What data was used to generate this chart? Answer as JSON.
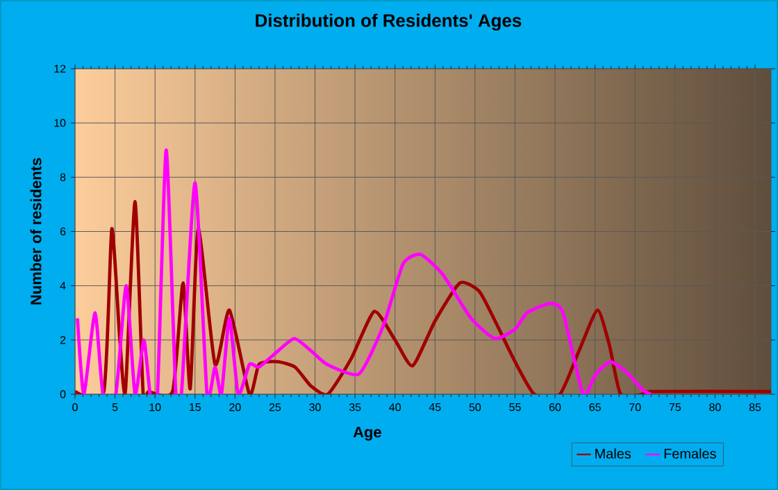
{
  "chart_data": {
    "type": "line",
    "title": "Distribution of Residents' Ages",
    "xlabel": "Age",
    "ylabel": "Number of residents",
    "xlim": [
      0,
      87
    ],
    "ylim": [
      0,
      12
    ],
    "xticks": [
      0,
      5,
      10,
      15,
      20,
      25,
      30,
      35,
      40,
      45,
      50,
      55,
      60,
      65,
      70,
      75,
      80,
      85
    ],
    "yticks": [
      0,
      2,
      4,
      6,
      8,
      10,
      12
    ],
    "grid": true,
    "legend": "bottom right",
    "series": [
      {
        "name": "Males",
        "color": "#a00000",
        "x": [
          0,
          3.6,
          4.6,
          5.6,
          6.3,
          7.5,
          8.5,
          9.2,
          12.2,
          13.5,
          14.4,
          15.4,
          17.5,
          19.3,
          21.8,
          23,
          25.3,
          27.5,
          29.5,
          31.6,
          34.5,
          37.4,
          40,
          42.2,
          45,
          48.1,
          50.5,
          52.5,
          55,
          57.4,
          60.6,
          63,
          65.3,
          66.8,
          68.2,
          71,
          72,
          87
        ],
        "values": [
          0.1,
          0.1,
          6.1,
          2,
          0.1,
          7.1,
          0.1,
          0.1,
          0.1,
          4.1,
          0.2,
          6.1,
          1.1,
          3.1,
          0,
          1.1,
          1.2,
          1,
          0.3,
          0,
          1.3,
          3.05,
          2,
          1.05,
          2.7,
          4.1,
          3.8,
          2.7,
          1.2,
          0,
          0,
          1.6,
          3.1,
          1.8,
          0,
          0,
          0.1,
          0.1
        ]
      },
      {
        "name": "Females",
        "color": "#ff00ff",
        "x": [
          0.3,
          1.1,
          2.5,
          3.5,
          5.1,
          6.4,
          7.5,
          8.6,
          9.4,
          10.3,
          11.4,
          12.6,
          13.3,
          15,
          16.5,
          17.5,
          18.3,
          19.3,
          20.4,
          21.8,
          23,
          25,
          27.4,
          29.5,
          31.5,
          35.5,
          38.5,
          41,
          43.2,
          46,
          49.5,
          52.5,
          55,
          56.5,
          59.4,
          61,
          63.5,
          65,
          66.9,
          69,
          71,
          72
        ],
        "values": [
          2.8,
          0,
          3,
          0,
          0,
          4,
          0,
          2,
          0,
          0,
          9,
          0,
          0,
          7.8,
          0,
          1,
          0,
          2.8,
          0,
          1.1,
          1,
          1.5,
          2.05,
          1.6,
          1.1,
          0.75,
          2.5,
          4.8,
          5.15,
          4.4,
          2.8,
          2.05,
          2.4,
          3,
          3.35,
          3,
          0,
          0.7,
          1.2,
          0.8,
          0.15,
          0
        ]
      }
    ]
  }
}
